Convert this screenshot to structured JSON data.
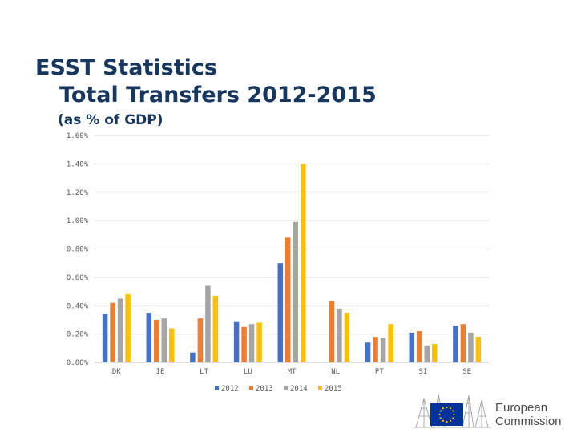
{
  "header": {
    "title_line1": "ESST Statistics",
    "title_line2": "Total Transfers 2012-2015",
    "subtitle": "(as % of GDP)"
  },
  "logo": {
    "text_line1": "European",
    "text_line2": "Commission"
  },
  "colors": {
    "s2012": "#4472c4",
    "s2013": "#ed7d31",
    "s2014": "#a5a5a5",
    "s2015": "#ffc000",
    "brand": "#17375e",
    "eu_blue": "#003399",
    "eu_star": "#ffcc00"
  },
  "chart_data": {
    "type": "bar",
    "title": "ESST Statistics Total Transfers 2012-2015 (as % of GDP)",
    "categories": [
      "DK",
      "IE",
      "LT",
      "LU",
      "MT",
      "NL",
      "PT",
      "SI",
      "SE"
    ],
    "series": [
      {
        "name": "2012",
        "values": [
          0.34,
          0.35,
          0.07,
          0.29,
          0.7,
          0.0,
          0.14,
          0.21,
          0.26
        ]
      },
      {
        "name": "2013",
        "values": [
          0.42,
          0.3,
          0.31,
          0.25,
          0.88,
          0.43,
          0.18,
          0.22,
          0.27
        ]
      },
      {
        "name": "2014",
        "values": [
          0.45,
          0.31,
          0.54,
          0.27,
          0.99,
          0.38,
          0.17,
          0.12,
          0.21
        ]
      },
      {
        "name": "2015",
        "values": [
          0.48,
          0.24,
          0.47,
          0.28,
          1.4,
          0.35,
          0.27,
          0.13,
          0.18
        ]
      }
    ],
    "y_ticks": [
      "0.00%",
      "0.20%",
      "0.40%",
      "0.60%",
      "0.80%",
      "1.00%",
      "1.20%",
      "1.40%",
      "1.60%"
    ],
    "ylim": [
      0,
      1.6
    ],
    "grid": true,
    "legend": "bottom"
  }
}
